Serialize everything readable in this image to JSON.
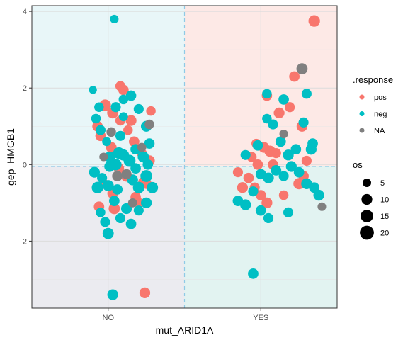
{
  "chart_data": {
    "type": "scatter",
    "title": "",
    "xlabel": "mut_ARID1A",
    "ylabel": "gep_HMGB1",
    "categories": [
      "NO",
      "YES"
    ],
    "xlim": [
      0.5,
      2.5
    ],
    "ylim": [
      -3.75,
      4.15
    ],
    "y_ticks": [
      -2,
      0,
      2,
      4
    ],
    "y_tick_labels": [
      "-2",
      "0",
      "2",
      "4"
    ],
    "grid": true,
    "jitter": "horizontal",
    "reference_lines": {
      "x": 1.5,
      "y": -0.05,
      "style": "dashed",
      "color": "#8ecae6"
    },
    "quadrant_colors": {
      "NO_high": "#e8f6f8",
      "YES_high": "#fde9e6",
      "NO_low": "#ebebf0",
      "YES_low": "#e2f3f1"
    },
    "legend": {
      "position": "right",
      "color_title": ".response",
      "color_entries": [
        {
          "label": "pos",
          "color": "#F8766D"
        },
        {
          "label": "neg",
          "color": "#00BFC4"
        },
        {
          "label": "NA",
          "color": "#808080"
        }
      ],
      "size_title": "os",
      "size_entries": [
        {
          "label": "5",
          "value": 5
        },
        {
          "label": "10",
          "value": 10
        },
        {
          "label": "15",
          "value": 15
        },
        {
          "label": "20",
          "value": 20
        }
      ]
    },
    "series": [
      {
        "name": "pos",
        "color": "#F8766D",
        "points": [
          [
            0.93,
            1.0,
            9
          ],
          [
            0.98,
            1.55,
            12
          ],
          [
            1.03,
            1.35,
            11
          ],
          [
            1.08,
            1.15,
            8
          ],
          [
            0.95,
            0.75,
            9
          ],
          [
            1.02,
            0.45,
            10
          ],
          [
            1.13,
            0.9,
            7
          ],
          [
            1.17,
            0.6,
            9
          ],
          [
            1.22,
            0.3,
            8
          ],
          [
            1.27,
            0.1,
            10
          ],
          [
            1.07,
            -0.1,
            9
          ],
          [
            1.12,
            -0.3,
            11
          ],
          [
            0.97,
            -0.5,
            8
          ],
          [
            1.03,
            -0.75,
            10
          ],
          [
            1.18,
            -0.85,
            9
          ],
          [
            1.23,
            -0.45,
            8
          ],
          [
            0.94,
            -1.1,
            9
          ],
          [
            1.04,
            -1.15,
            11
          ],
          [
            1.1,
            1.95,
            9
          ],
          [
            1.08,
            2.05,
            8
          ],
          [
            1.25,
            -0.5,
            9
          ],
          [
            1.15,
            1.15,
            10
          ],
          [
            1.28,
            1.4,
            7
          ],
          [
            1.2,
            -1.0,
            8
          ],
          [
            1.24,
            -3.35,
            10
          ],
          [
            1.92,
            -0.35,
            9
          ],
          [
            1.96,
            -0.6,
            8
          ],
          [
            2.0,
            -0.8,
            9
          ],
          [
            2.04,
            -1.0,
            10
          ],
          [
            1.98,
            0.0,
            9
          ],
          [
            1.94,
            0.2,
            8
          ],
          [
            2.02,
            0.45,
            10
          ],
          [
            2.06,
            0.35,
            11
          ],
          [
            2.1,
            0.3,
            8
          ],
          [
            2.08,
            0.0,
            9
          ],
          [
            1.97,
            0.55,
            7
          ],
          [
            2.12,
            1.35,
            10
          ],
          [
            2.04,
            1.8,
            9
          ],
          [
            2.19,
            1.5,
            8
          ],
          [
            2.22,
            2.3,
            9
          ],
          [
            2.27,
            1.0,
            10
          ],
          [
            2.25,
            -0.5,
            11
          ],
          [
            2.3,
            0.1,
            8
          ],
          [
            2.35,
            3.75,
            12
          ],
          [
            1.85,
            -0.2,
            8
          ],
          [
            1.88,
            -0.6,
            10
          ],
          [
            2.15,
            -0.8,
            7
          ],
          [
            2.28,
            -0.3,
            9
          ]
        ]
      },
      {
        "name": "neg",
        "color": "#00BFC4",
        "points": [
          [
            0.9,
            1.95,
            4
          ],
          [
            0.92,
            1.2,
            7
          ],
          [
            0.95,
            0.9,
            8
          ],
          [
            0.99,
            0.6,
            6
          ],
          [
            1.01,
            0.2,
            10
          ],
          [
            1.05,
            0.0,
            12
          ],
          [
            1.1,
            0.25,
            11
          ],
          [
            1.14,
            0.1,
            13
          ],
          [
            1.18,
            -0.1,
            9
          ],
          [
            0.91,
            -0.2,
            10
          ],
          [
            0.96,
            -0.35,
            8
          ],
          [
            1.0,
            -0.55,
            11
          ],
          [
            1.06,
            -0.65,
            9
          ],
          [
            1.16,
            -0.4,
            10
          ],
          [
            1.2,
            -0.6,
            12
          ],
          [
            1.25,
            -0.3,
            13
          ],
          [
            1.29,
            -0.6,
            11
          ],
          [
            0.93,
            -0.6,
            12
          ],
          [
            1.04,
            -0.95,
            9
          ],
          [
            1.12,
            -1.15,
            10
          ],
          [
            1.08,
            -1.4,
            8
          ],
          [
            1.15,
            -1.55,
            9
          ],
          [
            1.2,
            -1.2,
            8
          ],
          [
            1.25,
            -1.0,
            10
          ],
          [
            0.95,
            -1.25,
            7
          ],
          [
            0.98,
            -1.5,
            8
          ],
          [
            1.0,
            -1.8,
            11
          ],
          [
            1.05,
            1.5,
            8
          ],
          [
            1.1,
            1.7,
            7
          ],
          [
            1.15,
            1.8,
            9
          ],
          [
            1.2,
            1.45,
            8
          ],
          [
            1.25,
            1.0,
            10
          ],
          [
            1.27,
            0.55,
            9
          ],
          [
            1.1,
            1.25,
            6
          ],
          [
            0.94,
            1.5,
            7
          ],
          [
            1.08,
            0.75,
            8
          ],
          [
            1.18,
            0.4,
            9
          ],
          [
            1.04,
            3.8,
            5
          ],
          [
            1.03,
            -3.4,
            10
          ],
          [
            1.01,
            -0.05,
            10
          ],
          [
            1.07,
            0.3,
            12
          ],
          [
            1.23,
            0.2,
            11
          ],
          [
            1.26,
            0.0,
            9
          ],
          [
            1.85,
            -0.95,
            9
          ],
          [
            1.9,
            -1.05,
            10
          ],
          [
            1.95,
            -0.7,
            8
          ],
          [
            2.0,
            -0.25,
            9
          ],
          [
            2.05,
            -0.35,
            10
          ],
          [
            2.1,
            -0.15,
            9
          ],
          [
            2.15,
            -0.3,
            8
          ],
          [
            2.2,
            -0.05,
            10
          ],
          [
            2.25,
            -0.2,
            9
          ],
          [
            2.3,
            -0.5,
            10
          ],
          [
            2.35,
            -0.6,
            9
          ],
          [
            2.38,
            -0.8,
            10
          ],
          [
            1.9,
            0.25,
            8
          ],
          [
            1.98,
            0.5,
            9
          ],
          [
            2.04,
            1.2,
            7
          ],
          [
            2.08,
            1.05,
            8
          ],
          [
            2.13,
            0.6,
            9
          ],
          [
            2.18,
            0.25,
            10
          ],
          [
            2.23,
            0.4,
            9
          ],
          [
            2.28,
            1.1,
            8
          ],
          [
            2.33,
            0.4,
            10
          ],
          [
            2.18,
            -1.25,
            8
          ],
          [
            2.0,
            -1.2,
            9
          ],
          [
            2.05,
            -1.4,
            8
          ],
          [
            1.95,
            -2.85,
            9
          ],
          [
            2.04,
            1.85,
            7
          ],
          [
            2.15,
            1.7,
            9
          ],
          [
            2.3,
            1.85,
            8
          ],
          [
            2.34,
            0.55,
            9
          ]
        ]
      },
      {
        "name": "NA",
        "color": "#808080",
        "points": [
          [
            1.02,
            0.85,
            7
          ],
          [
            1.12,
            -0.25,
            8
          ],
          [
            1.22,
            0.45,
            6
          ],
          [
            1.27,
            1.05,
            7
          ],
          [
            1.06,
            -0.3,
            9
          ],
          [
            1.16,
            -1.0,
            6
          ],
          [
            0.97,
            0.2,
            5
          ],
          [
            2.27,
            2.5,
            11
          ],
          [
            2.4,
            -1.1,
            5
          ],
          [
            2.15,
            0.8,
            5
          ]
        ]
      }
    ]
  }
}
